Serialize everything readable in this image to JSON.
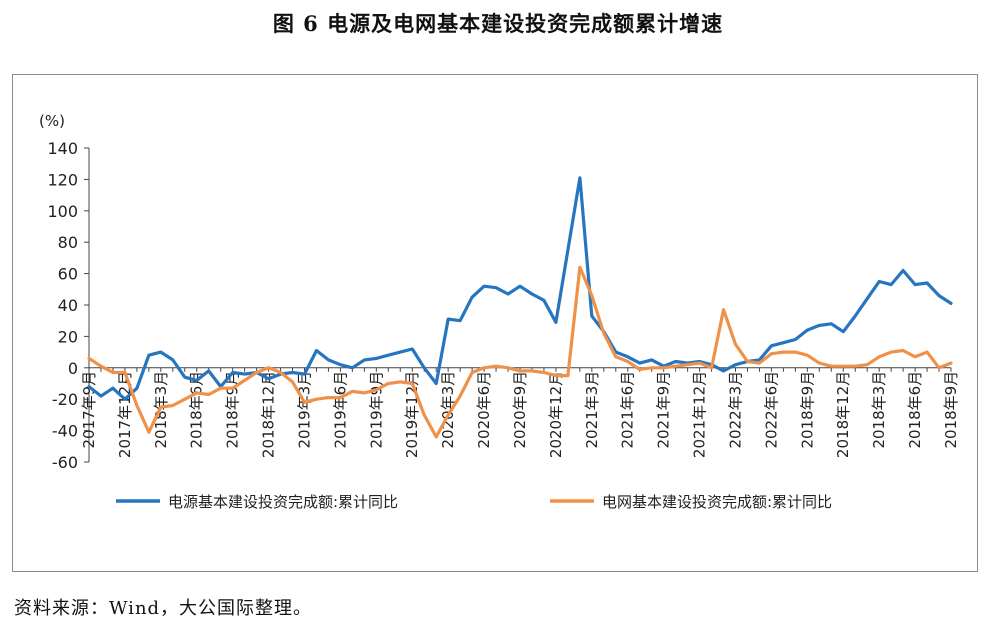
{
  "title": "图 6  电源及电网基本建设投资完成额累计增速",
  "source": "资料来源：Wind，大公国际整理。",
  "colors": {
    "series1": "#2575c0",
    "series2": "#f0914a",
    "axis": "#444444"
  },
  "chart_data": {
    "type": "line",
    "ylabel": "(%)",
    "ylim": [
      -60,
      140
    ],
    "yticks": [
      -60,
      -40,
      -20,
      0,
      20,
      40,
      60,
      80,
      100,
      120,
      140
    ],
    "grid": false,
    "legend_position": "bottom",
    "categories": [
      "2017年9月",
      "",
      "",
      "2017年12月",
      "",
      "",
      "2018年3月",
      "",
      "",
      "2018年6月",
      "",
      "",
      "2018年9月",
      "",
      "",
      "2018年12月",
      "",
      "",
      "2019年3月",
      "",
      "",
      "2019年6月",
      "",
      "",
      "2019年9月",
      "",
      "",
      "2019年12月",
      "",
      "",
      "2020年3月",
      "",
      "",
      "2020年6月",
      "",
      "",
      "2020年9月",
      "",
      "",
      "2020年12月",
      "",
      "",
      "2021年3月",
      "",
      "",
      "2021年6月",
      "",
      "",
      "2021年9月",
      "",
      "",
      "2021年12月",
      "",
      "",
      "2022年3月",
      "",
      "",
      "2022年6月",
      "",
      "",
      "2018年9月",
      "",
      "",
      "2018年12月",
      "",
      "",
      "2018年3月",
      "",
      "",
      "2018年6月",
      "",
      "",
      "2018年9月"
    ],
    "series": [
      {
        "name": "电源基本建设投资完成额:累计同比",
        "values": [
          -12,
          -18,
          -13,
          -20,
          -13,
          8,
          10,
          5,
          -6,
          -8,
          -2,
          -12,
          -3,
          -4,
          -3,
          -7,
          -4,
          -3,
          -4,
          11,
          5,
          2,
          0,
          5,
          6,
          8,
          10,
          12,
          0,
          -10,
          31,
          30,
          45,
          52,
          51,
          47,
          52,
          47,
          43,
          29,
          75,
          121,
          33,
          23,
          10,
          7,
          3,
          5,
          1,
          4,
          3,
          4,
          2,
          -2,
          2,
          4,
          5,
          14,
          16,
          18,
          24,
          27,
          28,
          23,
          33,
          44,
          55,
          53,
          62,
          53,
          54,
          46,
          41
        ]
      },
      {
        "name": "电网基本建设投资完成额:累计同比",
        "values": [
          6,
          1,
          -3,
          -3,
          -24,
          -41,
          -25,
          -24,
          -20,
          -16,
          -17,
          -13,
          -13,
          -8,
          -3,
          0,
          -3,
          -9,
          -22,
          -20,
          -19,
          -19,
          -15,
          -16,
          -14,
          -10,
          -9,
          -10,
          -30,
          -44,
          -30,
          -18,
          -3,
          0,
          1,
          0,
          -2,
          -2,
          -3,
          -5,
          -5,
          64,
          46,
          22,
          7,
          4,
          -1,
          0,
          0,
          1,
          2,
          3,
          0,
          37,
          15,
          4,
          3,
          9,
          10,
          10,
          8,
          3,
          1,
          1,
          1,
          2,
          7,
          10,
          11,
          7,
          10,
          0,
          3
        ]
      }
    ]
  }
}
